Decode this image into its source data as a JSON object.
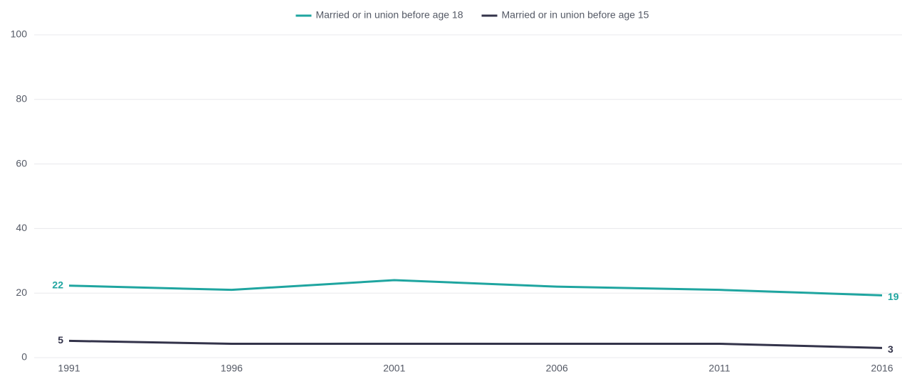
{
  "chart_data": {
    "type": "line",
    "x": [
      1991,
      1996,
      2001,
      2006,
      2011,
      2016
    ],
    "xlim": [
      1991,
      2016
    ],
    "xticks": [
      1991,
      1996,
      2001,
      2006,
      2011,
      2016
    ],
    "ylim": [
      0,
      100
    ],
    "yticks": [
      0,
      20,
      40,
      60,
      80,
      100
    ],
    "grid": true,
    "legend": "top",
    "series": [
      {
        "name": "Married or in union before age 18",
        "color": "#1fa5a0",
        "values": [
          22.3,
          21,
          24,
          22,
          21,
          19.3
        ],
        "value_labels": [
          "22",
          null,
          null,
          null,
          null,
          "19"
        ]
      },
      {
        "name": "Married or in union before age 15",
        "color": "#33334a",
        "values": [
          5.2,
          4.3,
          4.3,
          4.3,
          4.3,
          3
        ],
        "value_labels": [
          "5",
          null,
          null,
          null,
          null,
          "3"
        ]
      }
    ]
  }
}
